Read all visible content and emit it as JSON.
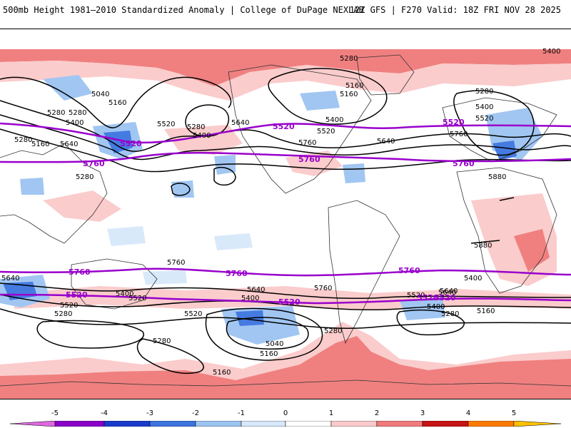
{
  "header": {
    "left_title": "500mb Height 1981–2010 Standardized Anomaly | College of DuPage NEXLAB",
    "right_title": "12Z GFS | F270 Valid: 18Z FRI NOV 28 2025"
  },
  "colorbar": {
    "ticks": [
      "-5",
      "-4",
      "-3",
      "-2",
      "-1",
      "0",
      "1",
      "2",
      "3",
      "4",
      "5"
    ],
    "colors": [
      "#e066e0",
      "#8a00c8",
      "#1a3ccc",
      "#3c74e0",
      "#9cc4f2",
      "#d6e8fa",
      "#ffffff",
      "#fbcaca",
      "#f07a7a",
      "#c81414",
      "#ff7a00",
      "#ffc000"
    ]
  },
  "contour_labels": {
    "black": [
      "5400",
      "5280",
      "5160",
      "5040",
      "5160",
      "5280",
      "5400",
      "5280",
      "5640",
      "5520",
      "5280",
      "5400",
      "5160",
      "5280",
      "5400",
      "5640",
      "5520",
      "5760",
      "5280",
      "5160",
      "5280",
      "5400",
      "5520",
      "5760",
      "5640",
      "5880",
      "5640",
      "5520",
      "5280",
      "5760",
      "5400",
      "5520",
      "5640",
      "5400",
      "5760",
      "5520",
      "5280",
      "5040",
      "5160",
      "5280",
      "5160",
      "5640",
      "5400",
      "5520",
      "5280",
      "5160",
      "5880",
      "5640",
      "5400"
    ],
    "purple": [
      "5520",
      "5760",
      "5520",
      "5760",
      "5520",
      "5760",
      "5760",
      "5520",
      "5760",
      "5520",
      "5760",
      "5520",
      "5520"
    ]
  }
}
